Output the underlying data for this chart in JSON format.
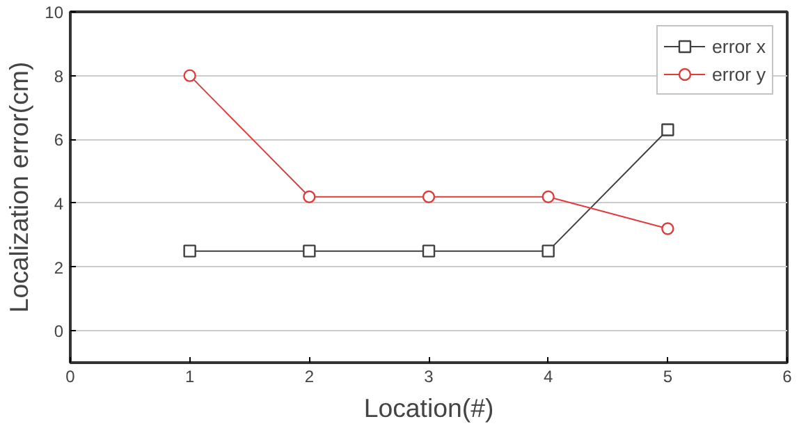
{
  "chart_data": {
    "type": "line",
    "xlabel": "Location(#)",
    "ylabel": "Localization error(cm)",
    "x": [
      1,
      2,
      3,
      4,
      5
    ],
    "series": [
      {
        "name": "error x",
        "color": "#404040",
        "marker": "square",
        "values": [
          2.5,
          2.5,
          2.5,
          2.5,
          6.3
        ]
      },
      {
        "name": "error y",
        "color": "#e03c3c",
        "marker": "circle",
        "values": [
          8,
          4.2,
          4.2,
          4.2,
          3.2
        ]
      }
    ],
    "xlim": [
      0,
      6
    ],
    "xticks": [
      0,
      1,
      2,
      3,
      4,
      5,
      6
    ],
    "ylim": [
      -1,
      10
    ],
    "yticks": [
      0,
      2,
      4,
      6,
      8,
      10
    ],
    "grid": "y",
    "legend": "top right",
    "line_style": "solid"
  }
}
